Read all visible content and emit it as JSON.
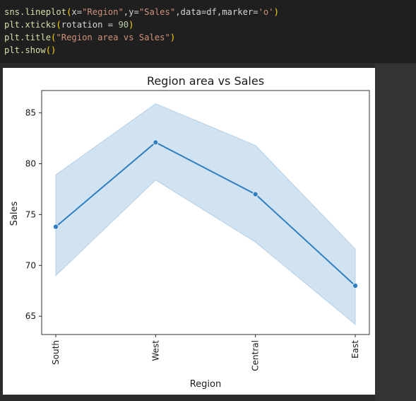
{
  "code": {
    "lines": [
      [
        {
          "t": "sns.lineplot",
          "c": "c-fn"
        },
        {
          "t": "(",
          "c": "c-paren"
        },
        {
          "t": "x=",
          "c": "c-plain"
        },
        {
          "t": "\"Region\"",
          "c": "c-str"
        },
        {
          "t": ",y=",
          "c": "c-plain"
        },
        {
          "t": "\"Sales\"",
          "c": "c-str"
        },
        {
          "t": ",data=df,marker=",
          "c": "c-plain"
        },
        {
          "t": "'o'",
          "c": "c-str"
        },
        {
          "t": ")",
          "c": "c-paren"
        }
      ],
      [
        {
          "t": "plt.xticks",
          "c": "c-fn"
        },
        {
          "t": "(",
          "c": "c-paren"
        },
        {
          "t": "rotation = ",
          "c": "c-plain"
        },
        {
          "t": "90",
          "c": "c-num"
        },
        {
          "t": ")",
          "c": "c-paren"
        }
      ],
      [
        {
          "t": "plt.title",
          "c": "c-fn"
        },
        {
          "t": "(",
          "c": "c-paren"
        },
        {
          "t": "\"Region area vs Sales\"",
          "c": "c-str"
        },
        {
          "t": ")",
          "c": "c-paren"
        }
      ],
      [
        {
          "t": "plt.show",
          "c": "c-fn"
        },
        {
          "t": "()",
          "c": "c-paren"
        }
      ]
    ]
  },
  "colors": {
    "line": "#2f7fc1",
    "band": "#c6dcee",
    "band_edge": "#b5cfe6",
    "code_bg": "#1f1f1f",
    "output_bg": "#2b2b2b"
  },
  "chart_data": {
    "type": "line",
    "title": "Region area vs Sales",
    "xlabel": "Region",
    "ylabel": "Sales",
    "categories": [
      "South",
      "West",
      "Central",
      "East"
    ],
    "x_tick_rotation": 90,
    "series": [
      {
        "values": [
          73.8,
          82.1,
          77.0,
          68.0
        ],
        "ci_lower": [
          69.0,
          78.4,
          72.3,
          64.2
        ],
        "ci_upper": [
          78.9,
          85.9,
          81.8,
          71.6
        ],
        "marker": "o"
      }
    ],
    "yticks": [
      65,
      70,
      75,
      80,
      85
    ],
    "ylim": [
      63.2,
      87.2
    ],
    "grid": false,
    "legend": "none"
  }
}
